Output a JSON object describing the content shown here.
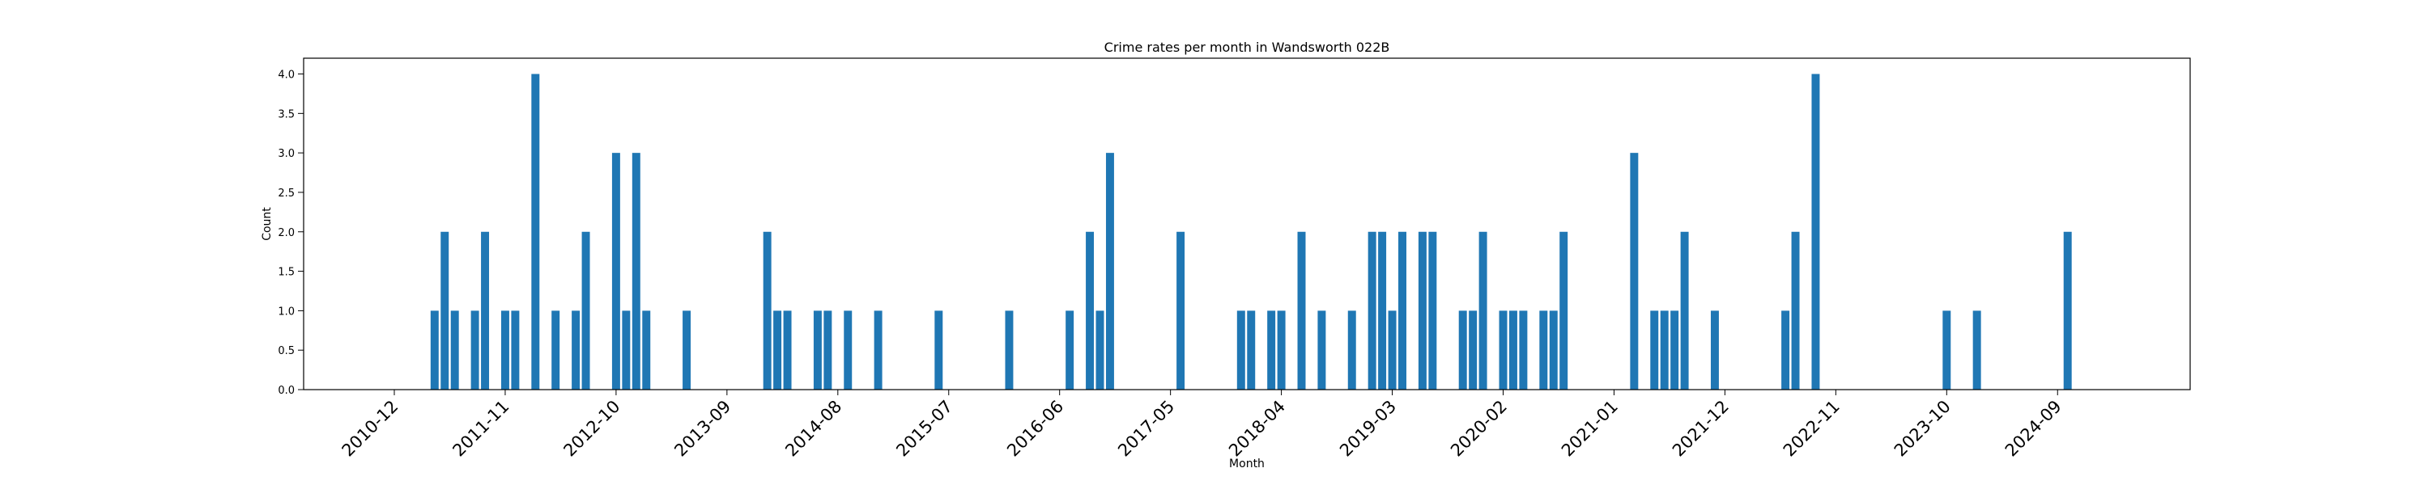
{
  "chart_data": {
    "type": "bar",
    "title": "Crime rates per month in Wandsworth 022B",
    "xlabel": "Month",
    "ylabel": "Count",
    "ylim": [
      0,
      4.2
    ],
    "grid": false,
    "color": "#1f77b4",
    "yticks": [
      0.0,
      0.5,
      1.0,
      1.5,
      2.0,
      2.5,
      3.0,
      3.5,
      4.0
    ],
    "xticks": [
      "2010-12",
      "2011-11",
      "2012-10",
      "2013-09",
      "2014-08",
      "2015-07",
      "2016-06",
      "2017-05",
      "2018-04",
      "2019-03",
      "2020-02",
      "2021-01",
      "2021-12",
      "2022-11",
      "2023-10",
      "2024-09"
    ],
    "categories": [
      "2011-04",
      "2011-05",
      "2011-06",
      "2011-08",
      "2011-09",
      "2011-11",
      "2011-12",
      "2012-02",
      "2012-04",
      "2012-06",
      "2012-07",
      "2012-10",
      "2012-11",
      "2012-12",
      "2013-01",
      "2013-05",
      "2014-01",
      "2014-02",
      "2014-03",
      "2014-06",
      "2014-07",
      "2014-09",
      "2014-12",
      "2015-06",
      "2016-01",
      "2016-07",
      "2016-09",
      "2016-10",
      "2016-11",
      "2017-06",
      "2017-12",
      "2018-01",
      "2018-03",
      "2018-04",
      "2018-06",
      "2018-08",
      "2018-11",
      "2019-01",
      "2019-02",
      "2019-03",
      "2019-04",
      "2019-06",
      "2019-07",
      "2019-10",
      "2019-11",
      "2019-12",
      "2020-02",
      "2020-03",
      "2020-04",
      "2020-06",
      "2020-07",
      "2020-08",
      "2021-03",
      "2021-05",
      "2021-06",
      "2021-07",
      "2021-08",
      "2021-11",
      "2022-06",
      "2022-07",
      "2022-09",
      "2023-10",
      "2024-01",
      "2024-10"
    ],
    "values": [
      1,
      2,
      1,
      1,
      2,
      1,
      1,
      4,
      1,
      1,
      2,
      3,
      1,
      3,
      1,
      1,
      2,
      1,
      1,
      1,
      1,
      1,
      1,
      1,
      1,
      1,
      2,
      1,
      3,
      2,
      1,
      1,
      1,
      1,
      2,
      1,
      1,
      2,
      2,
      1,
      2,
      2,
      2,
      1,
      1,
      2,
      1,
      1,
      1,
      1,
      1,
      2,
      3,
      1,
      1,
      1,
      2,
      1,
      1,
      2,
      4,
      1,
      1,
      2
    ]
  }
}
